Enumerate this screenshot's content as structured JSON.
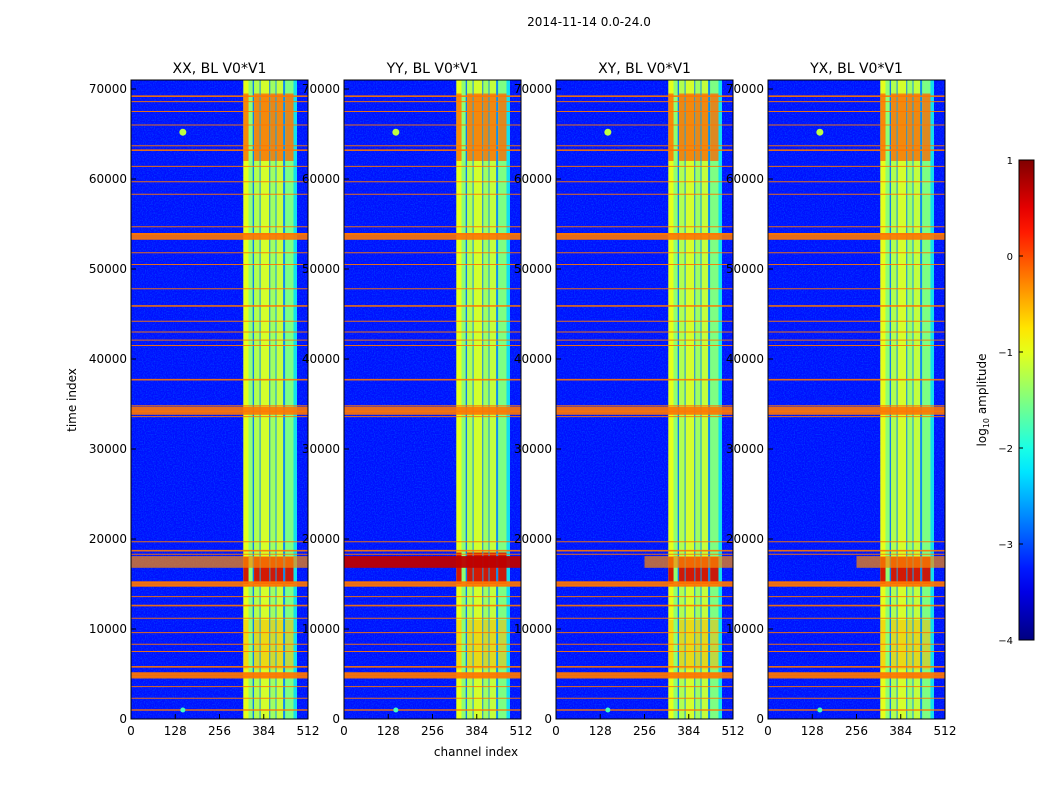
{
  "chart_data": {
    "type": "heatmap",
    "suptitle": "2014-11-14 0.0-24.0",
    "xlabel": "channel index",
    "ylabel": "time index",
    "xlim": [
      0,
      512
    ],
    "ylim": [
      0,
      71000
    ],
    "x_ticks": [
      0,
      128,
      256,
      384,
      512
    ],
    "y_ticks": [
      0,
      10000,
      20000,
      30000,
      40000,
      50000,
      60000,
      70000
    ],
    "colormap": "jet",
    "colorbar": {
      "label": "log10 amplitude",
      "label_main": "log",
      "label_sub": "10",
      "label_rest": " amplitude",
      "range": [
        -4,
        1
      ],
      "ticks": [
        -4,
        -3,
        -2,
        -1,
        0,
        1
      ],
      "tick_labels": [
        "−4",
        "−3",
        "−2",
        "−1",
        "0",
        "1"
      ]
    },
    "panels": [
      {
        "id": "xx",
        "title": "XX, BL V0*V1",
        "strong_band_ymax": 18000,
        "hot_band_channels": [
          0,
          512
        ]
      },
      {
        "id": "yy",
        "title": "YY, BL V0*V1",
        "strong_band_ymax": 18500,
        "hot_band_channels": [
          0,
          512
        ]
      },
      {
        "id": "xy",
        "title": "XY, BL V0*V1",
        "strong_band_ymax": 18000,
        "hot_band_channels": [
          256,
          512
        ]
      },
      {
        "id": "yx",
        "title": "YX, BL V0*V1",
        "strong_band_ymax": 18000,
        "hot_band_channels": [
          256,
          512
        ]
      }
    ],
    "bright_channel_range": [
      325,
      480
    ],
    "rfi_rows": [
      1000,
      2300,
      3600,
      4700,
      5000,
      5800,
      7500,
      8300,
      9600,
      11200,
      12600,
      13600,
      14800,
      15200,
      18300,
      18700,
      19700,
      33600,
      34200,
      34800,
      37700,
      41500,
      42100,
      43000,
      44200,
      45900,
      47800,
      50500,
      51800,
      53300,
      53900,
      54700,
      58300,
      59700,
      61400,
      63200,
      63700,
      66000,
      67500,
      68600,
      69200
    ]
  }
}
